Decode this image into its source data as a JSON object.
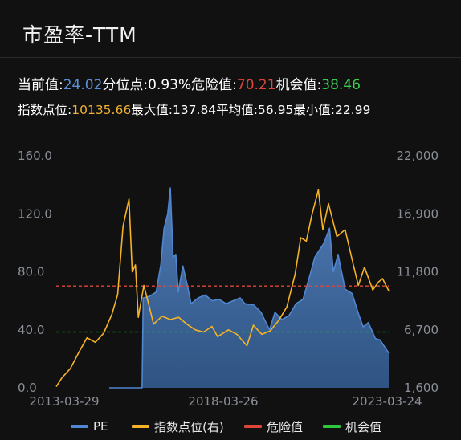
{
  "header": {
    "title": "市盈率-TTM"
  },
  "stats": {
    "current_label": "当前值:",
    "current_value": "24.02",
    "percentile_label": "分位点:",
    "percentile_value": "0.93%",
    "danger_label": "危险值:",
    "danger_value": "70.21",
    "opportunity_label": "机会值:",
    "opportunity_value": "38.46",
    "index_label": "指数点位:",
    "index_value": "10135.66",
    "max_label": "最大值:",
    "max_value": "137.84",
    "avg_label": "平均值:",
    "avg_value": "56.95",
    "min_label": "最小值:",
    "min_value": "22.99"
  },
  "colors": {
    "pe": "#4f86cf",
    "index": "#f4b228",
    "danger": "#e0453a",
    "opportunity": "#2fc63e"
  },
  "chart_data": {
    "type": "area",
    "x_ticks": [
      "2013-03-29",
      "2018-03-26",
      "2023-03-24"
    ],
    "left_axis": {
      "ticks": [
        "160.0",
        "120.0",
        "80.0",
        "40.0",
        "0.0"
      ],
      "ylim": [
        0,
        160
      ]
    },
    "right_axis": {
      "ticks": [
        "22,000",
        "16,900",
        "11,800",
        "6,700",
        "1,600"
      ],
      "ylim": [
        1600,
        22000
      ]
    },
    "danger_value": 70.21,
    "opportunity_value": 38.46,
    "series": [
      {
        "name": "PE",
        "axis": "left",
        "points": [
          [
            "2013-03-29",
            0
          ],
          [
            "2013-06-01",
            0
          ],
          [
            "2013-09-01",
            0
          ],
          [
            "2013-12-01",
            0
          ],
          [
            "2014-03-01",
            0
          ],
          [
            "2014-06-01",
            0
          ],
          [
            "2014-06-15",
            62
          ],
          [
            "2014-09-01",
            63
          ],
          [
            "2014-12-01",
            66
          ],
          [
            "2015-02-01",
            85
          ],
          [
            "2015-03-15",
            110
          ],
          [
            "2015-05-01",
            120
          ],
          [
            "2015-06-05",
            137.84
          ],
          [
            "2015-07-10",
            90
          ],
          [
            "2015-08-15",
            92
          ],
          [
            "2015-09-15",
            66
          ],
          [
            "2015-11-15",
            84
          ],
          [
            "2016-01-15",
            70
          ],
          [
            "2016-03-01",
            58
          ],
          [
            "2016-06-01",
            62
          ],
          [
            "2016-09-01",
            64
          ],
          [
            "2016-12-01",
            60
          ],
          [
            "2017-03-01",
            61
          ],
          [
            "2017-06-01",
            58
          ],
          [
            "2017-09-01",
            60
          ],
          [
            "2017-12-01",
            62
          ],
          [
            "2018-02-01",
            58
          ],
          [
            "2018-06-01",
            57
          ],
          [
            "2018-09-01",
            52
          ],
          [
            "2018-12-20",
            40
          ],
          [
            "2019-03-01",
            52
          ],
          [
            "2019-06-01",
            47
          ],
          [
            "2019-09-01",
            50
          ],
          [
            "2019-12-01",
            58
          ],
          [
            "2020-03-01",
            61
          ],
          [
            "2020-06-01",
            78
          ],
          [
            "2020-08-01",
            90
          ],
          [
            "2020-10-01",
            95
          ],
          [
            "2020-12-01",
            100
          ],
          [
            "2021-02-10",
            110
          ],
          [
            "2021-04-01",
            80
          ],
          [
            "2021-06-01",
            92
          ],
          [
            "2021-09-01",
            68
          ],
          [
            "2021-12-01",
            65
          ],
          [
            "2022-03-01",
            50
          ],
          [
            "2022-04-25",
            42
          ],
          [
            "2022-07-01",
            45
          ],
          [
            "2022-10-01",
            34
          ],
          [
            "2022-12-01",
            33
          ],
          [
            "2023-03-24",
            24.02
          ]
        ]
      },
      {
        "name": "指数点位(右)",
        "axis": "right",
        "points": [
          [
            "2013-03-29",
            1700
          ],
          [
            "2013-06-01",
            2500
          ],
          [
            "2013-09-01",
            3300
          ],
          [
            "2013-12-01",
            4700
          ],
          [
            "2014-03-01",
            6000
          ],
          [
            "2014-06-01",
            5600
          ],
          [
            "2014-09-01",
            6400
          ],
          [
            "2014-12-01",
            8100
          ],
          [
            "2015-02-01",
            9800
          ],
          [
            "2015-04-01",
            15800
          ],
          [
            "2015-06-05",
            18200
          ],
          [
            "2015-07-10",
            11800
          ],
          [
            "2015-08-15",
            12400
          ],
          [
            "2015-09-15",
            7800
          ],
          [
            "2015-11-15",
            10600
          ],
          [
            "2016-01-15",
            8700
          ],
          [
            "2016-03-01",
            7200
          ],
          [
            "2016-06-01",
            7900
          ],
          [
            "2016-09-01",
            7600
          ],
          [
            "2016-12-01",
            7800
          ],
          [
            "2017-03-01",
            7200
          ],
          [
            "2017-06-01",
            6700
          ],
          [
            "2017-09-01",
            6500
          ],
          [
            "2017-12-01",
            7000
          ],
          [
            "2018-02-01",
            6100
          ],
          [
            "2018-06-01",
            6700
          ],
          [
            "2018-09-01",
            6300
          ],
          [
            "2018-12-20",
            5300
          ],
          [
            "2019-03-01",
            7100
          ],
          [
            "2019-06-01",
            6300
          ],
          [
            "2019-09-01",
            6600
          ],
          [
            "2019-12-01",
            7500
          ],
          [
            "2020-03-01",
            8700
          ],
          [
            "2020-06-01",
            11600
          ],
          [
            "2020-08-01",
            14800
          ],
          [
            "2020-10-01",
            14500
          ],
          [
            "2020-12-01",
            16800
          ],
          [
            "2021-02-10",
            19000
          ],
          [
            "2021-04-01",
            15500
          ],
          [
            "2021-06-01",
            17800
          ],
          [
            "2021-09-01",
            14900
          ],
          [
            "2021-12-01",
            15500
          ],
          [
            "2022-03-01",
            12400
          ],
          [
            "2022-04-25",
            10600
          ],
          [
            "2022-07-01",
            12200
          ],
          [
            "2022-10-01",
            10200
          ],
          [
            "2022-12-01",
            10900
          ],
          [
            "2023-01-15",
            11200
          ],
          [
            "2023-03-24",
            10135.66
          ]
        ]
      }
    ],
    "legend": [
      "PE",
      "指数点位(右)",
      "危险值",
      "机会值"
    ],
    "legend_position": "bottom",
    "grid": false
  }
}
